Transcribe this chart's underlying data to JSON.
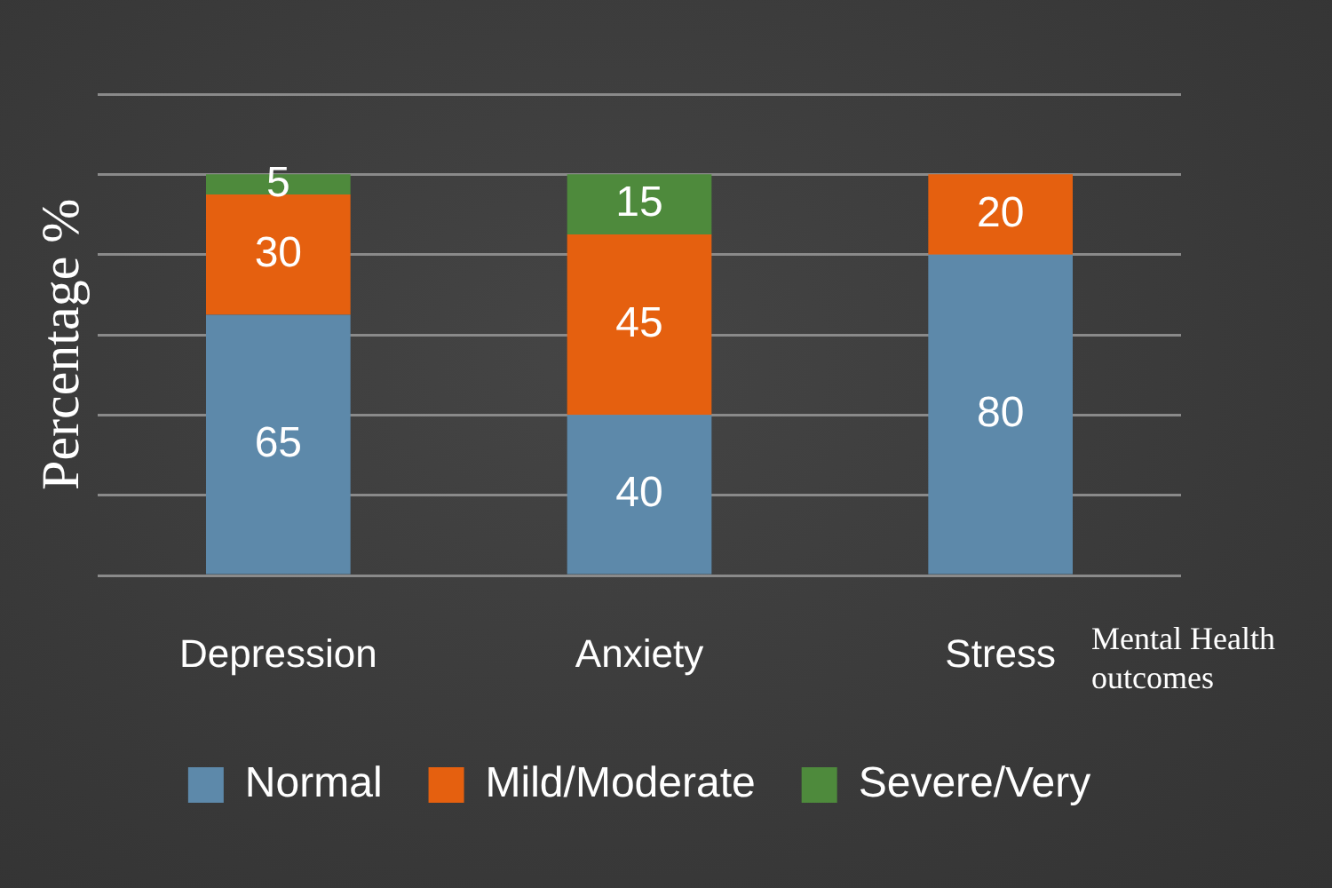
{
  "chart_data": {
    "type": "bar",
    "stacked": true,
    "ylabel": "Percentage %",
    "xlabel": "Mental Health outcomes",
    "categories": [
      "Depression",
      "Anxiety",
      "Stress"
    ],
    "series": [
      {
        "name": "Normal",
        "color": "#5d89aa",
        "values": [
          65,
          40,
          80
        ]
      },
      {
        "name": "Mild/Moderate",
        "color": "#e5600f",
        "values": [
          30,
          45,
          20
        ]
      },
      {
        "name": "Severe/Very",
        "color": "#4e8a3c",
        "values": [
          5,
          15,
          null
        ]
      }
    ],
    "ylim": [
      0,
      120
    ],
    "yticks": [
      {
        "value": 0,
        "label": null
      },
      {
        "value": 20,
        "label": null
      },
      {
        "value": 40,
        "label": null
      },
      {
        "value": 60,
        "label": null
      },
      {
        "value": 80,
        "label": null
      },
      {
        "value": 100,
        "label": null
      },
      {
        "value": 120,
        "label": null
      }
    ],
    "grid": "y",
    "legend": "bottom",
    "data_labels": true,
    "tick_labels": "x"
  }
}
